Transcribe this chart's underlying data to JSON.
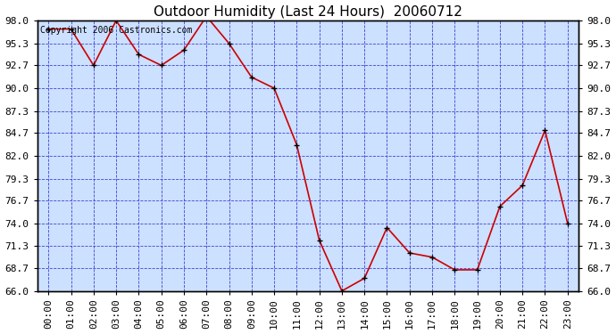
{
  "title": "Outdoor Humidity (Last 24 Hours)  20060712",
  "copyright_text": "Copyright 2006 Castronics.com",
  "x_labels": [
    "00:00",
    "01:00",
    "02:00",
    "03:00",
    "04:00",
    "05:00",
    "06:00",
    "07:00",
    "08:00",
    "09:00",
    "10:00",
    "11:00",
    "12:00",
    "13:00",
    "14:00",
    "15:00",
    "16:00",
    "17:00",
    "18:00",
    "19:00",
    "20:00",
    "21:00",
    "22:00",
    "23:00"
  ],
  "y_values": [
    97.0,
    97.0,
    92.7,
    98.0,
    94.0,
    92.7,
    94.5,
    98.5,
    95.3,
    91.3,
    90.0,
    83.3,
    72.0,
    66.0,
    67.5,
    73.5,
    70.5,
    70.0,
    68.5,
    68.5,
    76.0,
    78.5,
    85.0,
    74.0
  ],
  "ylim": [
    66.0,
    98.0
  ],
  "yticks": [
    66.0,
    68.7,
    71.3,
    74.0,
    76.7,
    79.3,
    82.0,
    84.7,
    87.3,
    90.0,
    92.7,
    95.3,
    98.0
  ],
  "ytick_labels": [
    "66.0",
    "68.7",
    "71.3",
    "74.0",
    "76.7",
    "79.3",
    "82.0",
    "84.7",
    "87.3",
    "90.0",
    "92.7",
    "95.3",
    "98.0"
  ],
  "line_color": "#cc0000",
  "marker_color": "#000000",
  "plot_bg_color": "#cce0ff",
  "outer_bg_color": "#ffffff",
  "grid_color": "#3333cc",
  "border_color": "#000000",
  "title_color": "#000000",
  "copyright_color": "#000000",
  "title_fontsize": 11,
  "copyright_fontsize": 7,
  "tick_fontsize": 8,
  "figsize": [
    6.9,
    3.75
  ],
  "dpi": 100
}
